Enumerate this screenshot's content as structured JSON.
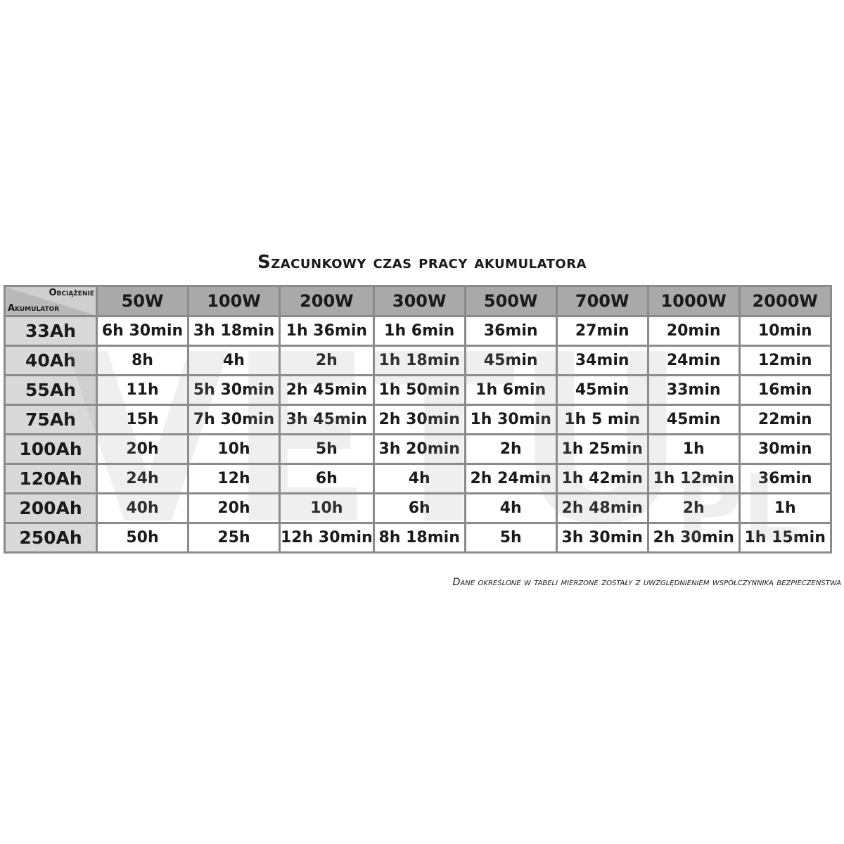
{
  "title": "Szacunkowy czas pracy akumulatora",
  "corner": {
    "load_label": "Obciążenie",
    "battery_label": "Akumulator"
  },
  "columns": [
    "50W",
    "100W",
    "200W",
    "300W",
    "500W",
    "700W",
    "1000W",
    "2000W"
  ],
  "rows": [
    {
      "label": "33Ah",
      "values": [
        "6h 30min",
        "3h 18min",
        "1h 36min",
        "1h 6min",
        "36min",
        "27min",
        "20min",
        "10min"
      ]
    },
    {
      "label": "40Ah",
      "values": [
        "8h",
        "4h",
        "2h",
        "1h 18min",
        "45min",
        "34min",
        "24min",
        "12min"
      ]
    },
    {
      "label": "55Ah",
      "values": [
        "11h",
        "5h 30min",
        "2h 45min",
        "1h 50min",
        "1h 6min",
        "45min",
        "33min",
        "16min"
      ]
    },
    {
      "label": "75Ah",
      "values": [
        "15h",
        "7h 30min",
        "3h 45min",
        "2h 30min",
        "1h 30min",
        "1h 5 min",
        "45min",
        "22min"
      ]
    },
    {
      "label": "100Ah",
      "values": [
        "20h",
        "10h",
        "5h",
        "3h 20min",
        "2h",
        "1h 25min",
        "1h",
        "30min"
      ]
    },
    {
      "label": "120Ah",
      "values": [
        "24h",
        "12h",
        "6h",
        "4h",
        "2h 24min",
        "1h 42min",
        "1h 12min",
        "36min"
      ]
    },
    {
      "label": "200Ah",
      "values": [
        "40h",
        "20h",
        "10h",
        "6h",
        "4h",
        "2h 48min",
        "2h",
        "1h"
      ]
    },
    {
      "label": "250Ah",
      "values": [
        "50h",
        "25h",
        "12h 30min",
        "8h 18min",
        "5h",
        "3h 30min",
        "2h 30min",
        "1h 15min"
      ]
    }
  ],
  "footnote": "Dane określone w tabeli mierzone zostały z uwzględnieniem współczynnika bezpieczeństwa",
  "watermark": {
    "main": "VETU",
    "suffix": "PL"
  },
  "colors": {
    "header_bg": "#a9a9a9",
    "row_header_bg": "#d9d9d9",
    "border": "#8a8a8a"
  }
}
